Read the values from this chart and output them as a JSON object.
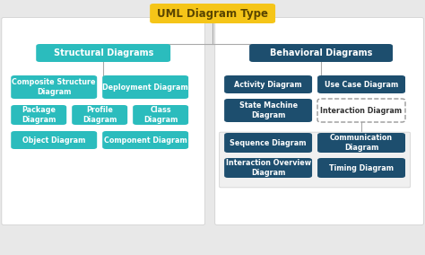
{
  "title": "UML Diagram Type",
  "title_color": "#5a4500",
  "title_bg": "#f5c518",
  "bg_color": "#e8e8e8",
  "teal_light": "#2bbcbd",
  "teal_dark": "#1d4e6e",
  "line_color": "#aaaaaa",
  "white_card": "#ffffff",
  "structural_label": "Structural Diagrams",
  "behavioral_label": "Behavioral Diagrams",
  "font_size_title": 8.5,
  "font_size_section": 7,
  "font_size_item": 5.8
}
